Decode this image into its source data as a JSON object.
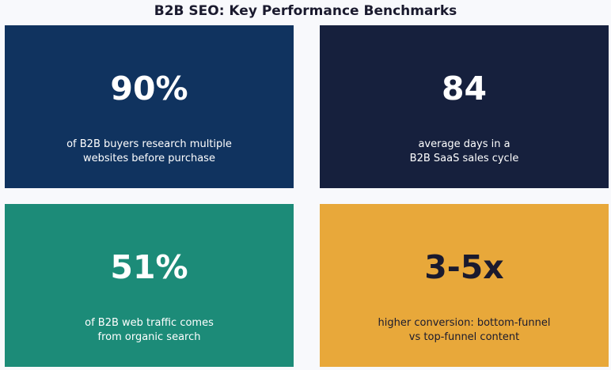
{
  "title": "B2B SEO: Key Performance Benchmarks",
  "cards": [
    {
      "stat": "90%",
      "line1": "of B2B buyers research multiple",
      "line2": "websites before purchase",
      "background": "#10335f",
      "text_color": "#ffffff"
    },
    {
      "stat": "84",
      "line1": "average days in a",
      "line2": "B2B SaaS sales cycle",
      "background": "#16203d",
      "text_color": "#ffffff"
    },
    {
      "stat": "51%",
      "line1": "of B2B web traffic comes",
      "line2": "from organic search",
      "background": "#1c8b78",
      "text_color": "#ffffff"
    },
    {
      "stat": "3-5x",
      "line1": "higher conversion: bottom-funnel",
      "line2": "vs top-funnel content",
      "background": "#e8a83a",
      "text_color": "#1a1a2e"
    }
  ]
}
